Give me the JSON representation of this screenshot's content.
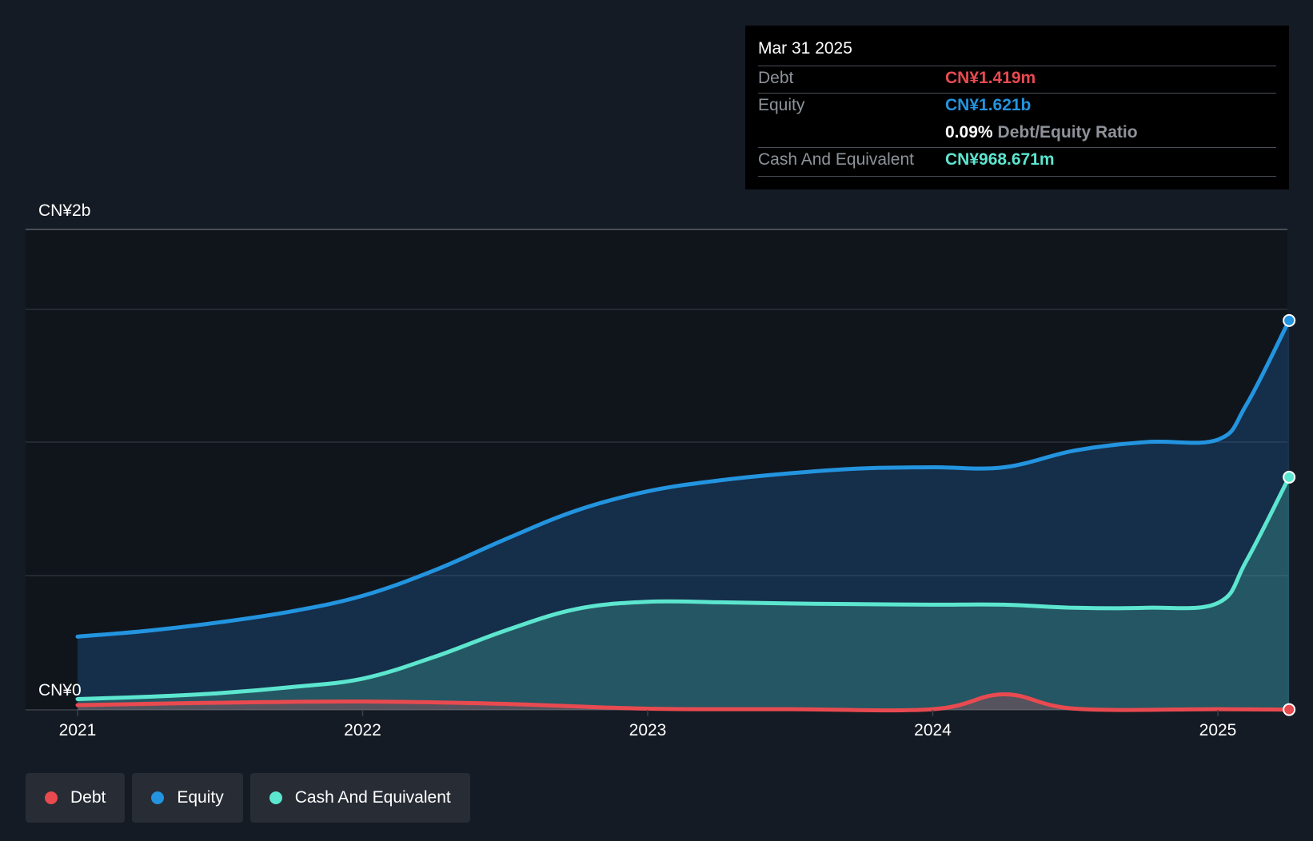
{
  "chart_data": {
    "type": "area",
    "y_axis_labels": {
      "top": "CN¥2b",
      "bottom": "CN¥0"
    },
    "ylim": [
      0,
      2000
    ],
    "unit": "CN¥m",
    "x_ticks": [
      "2021",
      "2022",
      "2023",
      "2024",
      "2025"
    ],
    "series": [
      {
        "name": "Debt",
        "color": "#e84a50",
        "x": [
          2021.0,
          2021.5,
          2022.0,
          2022.5,
          2023.0,
          2023.5,
          2024.0,
          2024.25,
          2024.5,
          2025.0,
          2025.25
        ],
        "values": [
          20,
          30,
          35,
          25,
          5,
          3,
          3,
          65,
          5,
          3,
          1.419
        ]
      },
      {
        "name": "Equity",
        "color": "#2394df",
        "x": [
          2021.0,
          2021.25,
          2021.5,
          2021.75,
          2022.0,
          2022.25,
          2022.5,
          2022.75,
          2023.0,
          2023.25,
          2023.5,
          2023.75,
          2024.0,
          2024.25,
          2024.5,
          2024.75,
          2025.0,
          2025.1,
          2025.25
        ],
        "values": [
          305,
          330,
          365,
          410,
          475,
          580,
          710,
          830,
          910,
          955,
          985,
          1005,
          1010,
          1010,
          1080,
          1115,
          1125,
          1270,
          1621
        ]
      },
      {
        "name": "Cash And Equivalent",
        "color": "#5ce6cf",
        "x": [
          2021.0,
          2021.25,
          2021.5,
          2021.75,
          2022.0,
          2022.25,
          2022.5,
          2022.75,
          2023.0,
          2023.25,
          2023.5,
          2023.75,
          2024.0,
          2024.25,
          2024.5,
          2024.75,
          2025.0,
          2025.1,
          2025.25
        ],
        "values": [
          45,
          55,
          70,
          95,
          130,
          220,
          330,
          420,
          450,
          448,
          443,
          440,
          438,
          438,
          425,
          425,
          445,
          620,
          968.671
        ]
      }
    ]
  },
  "tooltip": {
    "date": "Mar 31 2025",
    "debt_label": "Debt",
    "debt_value": "CN¥1.419m",
    "equity_label": "Equity",
    "equity_value": "CN¥1.621b",
    "ratio_value": "0.09%",
    "ratio_label": "Debt/Equity Ratio",
    "cash_label": "Cash And Equivalent",
    "cash_value": "CN¥968.671m"
  },
  "legend": [
    {
      "label": "Debt",
      "color": "#e84a50"
    },
    {
      "label": "Equity",
      "color": "#2394df"
    },
    {
      "label": "Cash And Equivalent",
      "color": "#5ce6cf"
    }
  ]
}
